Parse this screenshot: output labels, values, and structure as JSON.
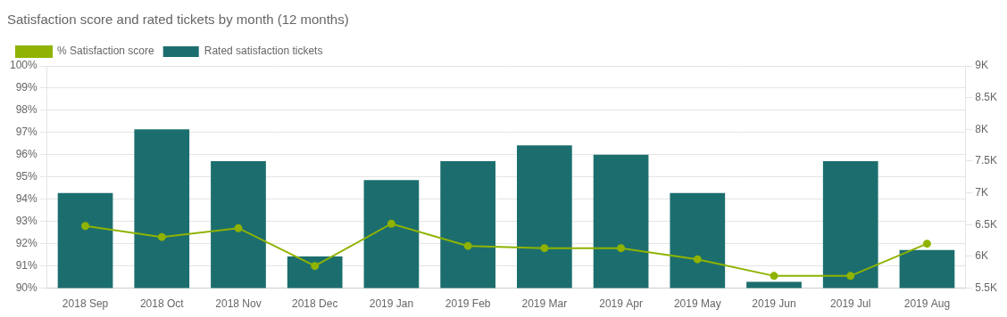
{
  "chart_data": {
    "type": "bar",
    "title": "Satisfaction score and rated tickets by month (12 months)",
    "categories": [
      "2018 Sep",
      "2018 Oct",
      "2018 Nov",
      "2018 Dec",
      "2019 Jan",
      "2019 Feb",
      "2019 Mar",
      "2019 Apr",
      "2019 May",
      "2019 Jun",
      "2019 Jul",
      "2019 Aug"
    ],
    "series": [
      {
        "name": "% Satisfaction score",
        "type": "line",
        "color": "#8fb300",
        "marker": "circle",
        "line_style": "solid",
        "values": [
          92.8,
          92.3,
          92.7,
          91.0,
          92.9,
          91.9,
          91.8,
          91.8,
          91.3,
          90.55,
          90.55,
          92.0
        ]
      },
      {
        "name": "Rated satisfaction tickets",
        "type": "bar",
        "color": "#1c6e6e",
        "axis": "y2",
        "values": [
          7000,
          8000,
          7500,
          6000,
          7200,
          7500,
          7750,
          7600,
          7000,
          5600,
          7500,
          6100
        ]
      }
    ],
    "ylim": [
      90,
      100
    ],
    "yticks": [
      {
        "value": 90,
        "label": "90%"
      },
      {
        "value": 91,
        "label": "91%"
      },
      {
        "value": 92,
        "label": "92%"
      },
      {
        "value": 93,
        "label": "93%"
      },
      {
        "value": 94,
        "label": "94%"
      },
      {
        "value": 95,
        "label": "95%"
      },
      {
        "value": 96,
        "label": "96%"
      },
      {
        "value": 97,
        "label": "97%"
      },
      {
        "value": 98,
        "label": "98%"
      },
      {
        "value": 99,
        "label": "99%"
      },
      {
        "value": 100,
        "label": "100%"
      }
    ],
    "y2lim": [
      5500,
      9000
    ],
    "y2ticks": [
      {
        "value": 5500,
        "label": "5.5K"
      },
      {
        "value": 6000,
        "label": "6K"
      },
      {
        "value": 6500,
        "label": "6.5K"
      },
      {
        "value": 7000,
        "label": "7K"
      },
      {
        "value": 7500,
        "label": "7.5K"
      },
      {
        "value": 8000,
        "label": "8K"
      },
      {
        "value": 8500,
        "label": "8.5K"
      },
      {
        "value": 9000,
        "label": "9K"
      }
    ],
    "grid": true,
    "legend": "upper left"
  }
}
